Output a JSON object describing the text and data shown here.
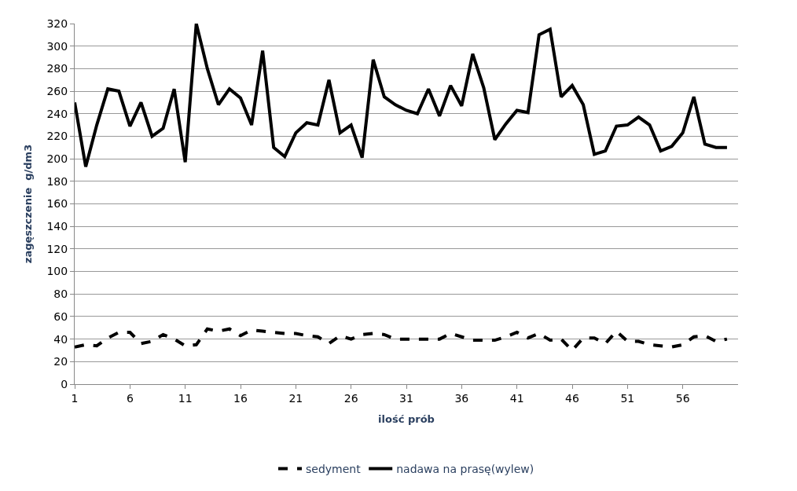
{
  "chart_data": {
    "type": "line",
    "xlabel": "ilość prób",
    "ylabel": "zagęszczenie  g/dm3",
    "x": [
      1,
      2,
      3,
      4,
      5,
      6,
      7,
      8,
      9,
      10,
      11,
      12,
      13,
      14,
      15,
      16,
      17,
      18,
      19,
      20,
      21,
      22,
      23,
      24,
      25,
      26,
      27,
      28,
      29,
      30,
      31,
      32,
      33,
      34,
      35,
      36,
      37,
      38,
      39,
      40,
      41,
      42,
      43,
      44,
      45,
      46,
      47,
      48,
      49,
      50,
      51,
      52,
      53,
      54,
      55,
      56,
      57,
      58,
      59,
      60
    ],
    "xlim": [
      1,
      61
    ],
    "xticks": [
      1,
      6,
      11,
      16,
      21,
      26,
      31,
      36,
      41,
      46,
      51,
      56
    ],
    "ylim": [
      0,
      320
    ],
    "yticks": [
      0,
      20,
      40,
      60,
      80,
      100,
      120,
      140,
      160,
      180,
      200,
      220,
      240,
      260,
      280,
      300,
      320
    ],
    "grid": "y",
    "legend": "bottom",
    "marker": "none",
    "series": [
      {
        "name": "sedyment",
        "color": "#000000",
        "line_style": "dashed",
        "values": [
          33,
          35,
          34,
          41,
          46,
          46,
          36,
          38,
          44,
          40,
          34,
          35,
          49,
          47,
          49,
          43,
          48,
          47,
          46,
          45,
          45,
          43,
          42,
          36,
          43,
          40,
          44,
          45,
          44,
          40,
          40,
          40,
          40,
          40,
          45,
          42,
          39,
          39,
          39,
          42,
          46,
          41,
          45,
          39,
          40,
          30,
          41,
          41,
          36,
          47,
          38,
          38,
          35,
          34,
          33,
          35,
          42,
          43,
          38,
          40
        ]
      },
      {
        "name": "nadawa na prasę(wylew)",
        "color": "#000000",
        "line_style": "solid",
        "values": [
          250,
          193,
          230,
          262,
          260,
          229,
          250,
          220,
          227,
          262,
          197,
          320,
          280,
          248,
          262,
          254,
          230,
          296,
          210,
          202,
          223,
          232,
          230,
          270,
          223,
          230,
          201,
          288,
          255,
          248,
          243,
          240,
          262,
          238,
          265,
          247,
          293,
          263,
          217,
          231,
          243,
          241,
          310,
          315,
          255,
          265,
          248,
          204,
          207,
          229,
          230,
          237,
          230,
          207,
          211,
          223,
          255,
          213,
          210,
          210
        ]
      }
    ]
  }
}
